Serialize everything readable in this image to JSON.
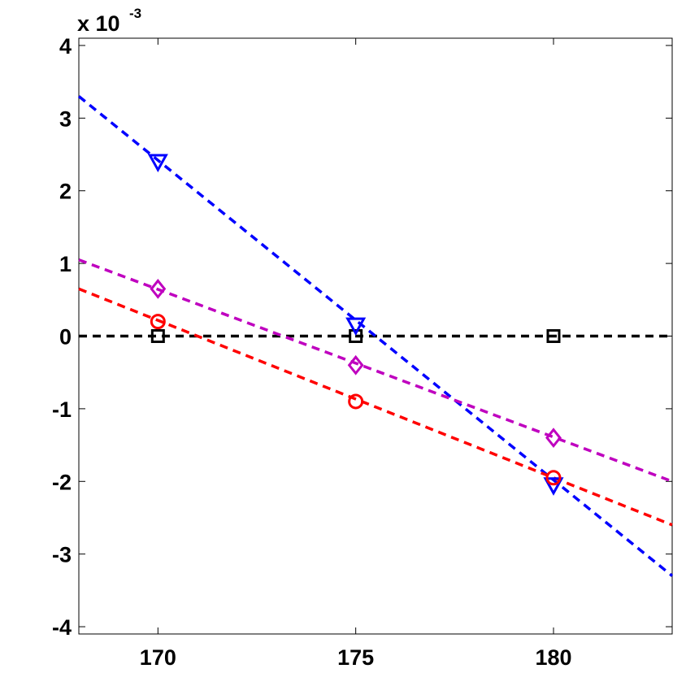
{
  "chart_data": {
    "type": "line",
    "title": "",
    "xlabel": "",
    "ylabel": "",
    "xlim": [
      168,
      183
    ],
    "ylim": [
      -4.1,
      4.1
    ],
    "x_ticks": [
      170,
      175,
      180
    ],
    "y_ticks": [
      -4,
      -3,
      -2,
      -1,
      0,
      1,
      2,
      3,
      4
    ],
    "y_multiplier": {
      "base": "x 10",
      "exponent": "-3"
    },
    "grid": false,
    "legend": "none",
    "series": [
      {
        "marker": "square",
        "color": "#000000",
        "points": {
          "x": [
            170,
            175,
            180
          ],
          "y": [
            0,
            0,
            0
          ]
        },
        "fit_line": {
          "x": [
            168,
            183
          ],
          "y": [
            0,
            0
          ]
        }
      },
      {
        "marker": "triangle-down",
        "color": "#0000ff",
        "points": {
          "x": [
            170,
            175,
            180
          ],
          "y": [
            2.4,
            0.15,
            -2.05
          ]
        },
        "fit_line": {
          "x": [
            168,
            183
          ],
          "y": [
            3.3,
            -3.3
          ]
        }
      },
      {
        "marker": "diamond",
        "color": "#bf00bf",
        "points": {
          "x": [
            170,
            175,
            180
          ],
          "y": [
            0.65,
            -0.4,
            -1.4
          ]
        },
        "fit_line": {
          "x": [
            168,
            183
          ],
          "y": [
            1.05,
            -2.0
          ]
        }
      },
      {
        "marker": "circle",
        "color": "#ff0000",
        "points": {
          "x": [
            170,
            175,
            180
          ],
          "y": [
            0.2,
            -0.9,
            -1.95
          ]
        },
        "fit_line": {
          "x": [
            168,
            183
          ],
          "y": [
            0.65,
            -2.6
          ]
        }
      }
    ]
  }
}
